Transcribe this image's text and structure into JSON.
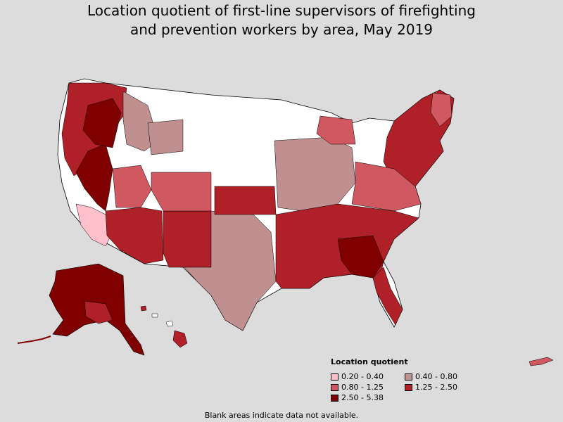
{
  "title": {
    "line1": "Location quotient of first-line supervisors of firefighting",
    "line2": "and prevention workers by area, May 2019"
  },
  "legend": {
    "title": "Location quotient",
    "items": [
      {
        "label": "0.20 - 0.40",
        "color": "#ffc0cb"
      },
      {
        "label": "0.40 - 0.80",
        "color": "#c09090"
      },
      {
        "label": "0.80 - 1.25",
        "color": "#d05860"
      },
      {
        "label": "1.25 - 2.50",
        "color": "#b02028"
      },
      {
        "label": "2.50 - 5.38",
        "color": "#800000"
      }
    ]
  },
  "footnote": "Blank areas indicate data not available.",
  "colors": {
    "background": "#dcdcdc",
    "no_data": "#ffffff",
    "border": "#000000"
  }
}
